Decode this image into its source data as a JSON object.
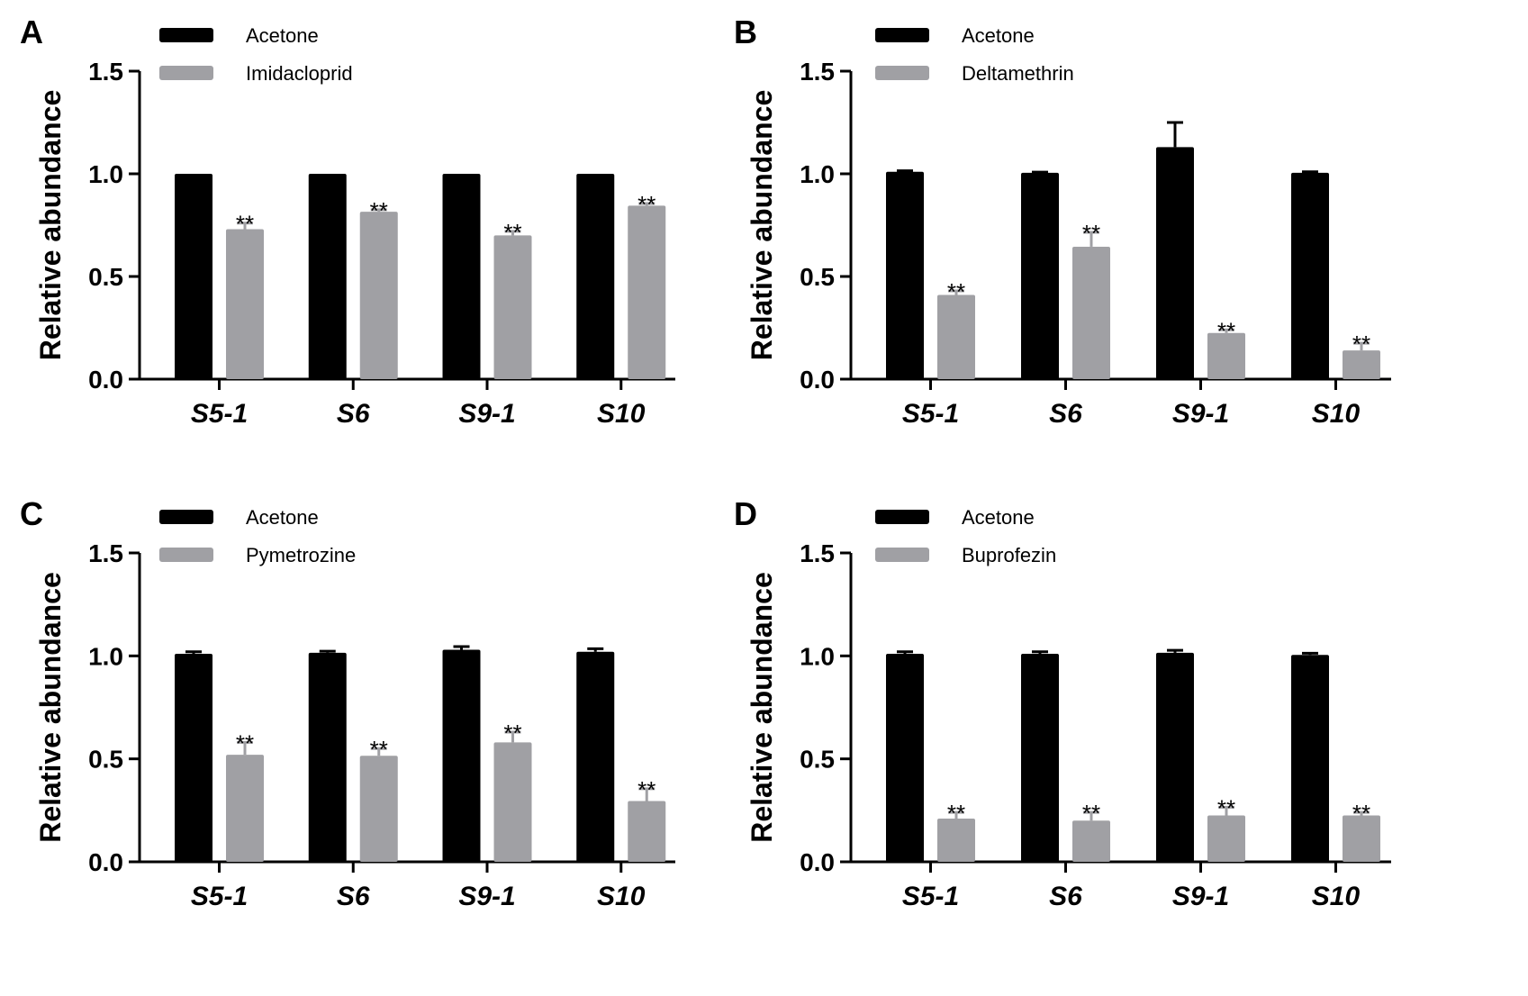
{
  "colors": {
    "control": "#000000",
    "treatment": "#a0a0a4",
    "axis": "#000000"
  },
  "chart_data": [
    {
      "type": "bar",
      "panel": "A",
      "ylabel": "Relative abundance",
      "ylim": [
        0,
        1.5
      ],
      "yticks": [
        "0.0",
        "0.5",
        "1.0",
        "1.5"
      ],
      "categories": [
        "S5-1",
        "S6",
        "S9-1",
        "S10"
      ],
      "series": [
        {
          "name": "Acetone",
          "values": [
            1.0,
            1.0,
            1.0,
            1.0
          ],
          "errors": [
            0,
            0,
            0,
            0
          ],
          "sig": [
            "",
            "",
            "",
            ""
          ]
        },
        {
          "name": "Imidacloprid",
          "values": [
            0.73,
            0.815,
            0.7,
            0.845
          ],
          "errors": [
            0.03,
            0.01,
            0.02,
            0.01
          ],
          "sig": [
            "**",
            "**",
            "**",
            "**"
          ]
        }
      ]
    },
    {
      "type": "bar",
      "panel": "B",
      "ylabel": "Relative abundance",
      "ylim": [
        0,
        1.5
      ],
      "yticks": [
        "0.0",
        "0.5",
        "1.0",
        "1.5"
      ],
      "categories": [
        "S5-1",
        "S6",
        "S9-1",
        "S10"
      ],
      "series": [
        {
          "name": "Acetone",
          "values": [
            1.01,
            1.005,
            1.13,
            1.005
          ],
          "errors": [
            0.005,
            0.003,
            0.12,
            0.005
          ],
          "sig": [
            "",
            "",
            "",
            ""
          ]
        },
        {
          "name": "Deltamethrin",
          "values": [
            0.41,
            0.645,
            0.225,
            0.14
          ],
          "errors": [
            0.02,
            0.07,
            0.015,
            0.035
          ],
          "sig": [
            "**",
            "**",
            "**",
            "**"
          ]
        }
      ]
    },
    {
      "type": "bar",
      "panel": "C",
      "ylabel": "Relative abundance",
      "ylim": [
        0,
        1.5
      ],
      "yticks": [
        "0.0",
        "0.5",
        "1.0",
        "1.5"
      ],
      "categories": [
        "S5-1",
        "S6",
        "S9-1",
        "S10"
      ],
      "series": [
        {
          "name": "Acetone",
          "values": [
            1.01,
            1.015,
            1.03,
            1.02
          ],
          "errors": [
            0.01,
            0.008,
            0.015,
            0.015
          ],
          "sig": [
            "",
            "",
            "",
            ""
          ]
        },
        {
          "name": "Pymetrozine",
          "values": [
            0.52,
            0.515,
            0.58,
            0.295
          ],
          "errors": [
            0.06,
            0.035,
            0.05,
            0.06
          ],
          "sig": [
            "**",
            "**",
            "**",
            "**"
          ]
        }
      ]
    },
    {
      "type": "bar",
      "panel": "D",
      "ylabel": "Relative abundance",
      "ylim": [
        0,
        1.5
      ],
      "yticks": [
        "0.0",
        "0.5",
        "1.0",
        "1.5"
      ],
      "categories": [
        "S5-1",
        "S6",
        "S9-1",
        "S10"
      ],
      "series": [
        {
          "name": "Acetone",
          "values": [
            1.01,
            1.01,
            1.015,
            1.005
          ],
          "errors": [
            0.01,
            0.01,
            0.012,
            0.008
          ],
          "sig": [
            "",
            "",
            "",
            ""
          ]
        },
        {
          "name": "Buprofezin",
          "values": [
            0.21,
            0.2,
            0.225,
            0.225
          ],
          "errors": [
            0.03,
            0.04,
            0.04,
            0.015
          ],
          "sig": [
            "**",
            "**",
            "**",
            "**"
          ]
        }
      ]
    }
  ]
}
